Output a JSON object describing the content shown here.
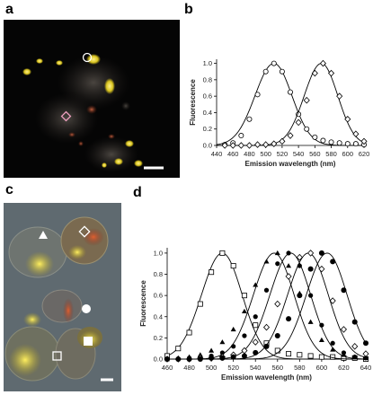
{
  "figure": {
    "panel_labels": {
      "a": "a",
      "b": "b",
      "c": "c",
      "d": "d"
    }
  },
  "chart_data": [
    {
      "panel": "b",
      "type": "line",
      "xlabel": "Emission wavelength (nm)",
      "ylabel": "Fluorescence",
      "xlim": [
        440,
        620
      ],
      "ylim": [
        0,
        1.05
      ],
      "xticks": [
        440,
        460,
        480,
        500,
        520,
        540,
        560,
        580,
        600,
        620
      ],
      "yticks": [
        0,
        0.2,
        0.4,
        0.6,
        0.8,
        1.0
      ],
      "marker": "circle/diamond (open)",
      "series": [
        {
          "peak": 510,
          "width": 22,
          "x": [
            450,
            460,
            470,
            480,
            490,
            500,
            510,
            520,
            530,
            540,
            550,
            560,
            570,
            580,
            590,
            600,
            610,
            620
          ],
          "y": [
            0.01,
            0.03,
            0.12,
            0.32,
            0.62,
            0.9,
            1.0,
            0.9,
            0.65,
            0.38,
            0.2,
            0.1,
            0.06,
            0.04,
            0.03,
            0.02,
            0.02,
            0.01
          ]
        },
        {
          "peak": 568,
          "width": 20,
          "x": [
            450,
            460,
            470,
            480,
            490,
            500,
            510,
            520,
            530,
            540,
            550,
            560,
            570,
            580,
            590,
            600,
            610,
            620
          ],
          "y": [
            0.0,
            0.0,
            0.0,
            0.0,
            0.01,
            0.01,
            0.02,
            0.05,
            0.12,
            0.28,
            0.55,
            0.88,
            1.0,
            0.88,
            0.6,
            0.32,
            0.14,
            0.05
          ]
        }
      ]
    },
    {
      "panel": "d",
      "type": "line",
      "xlabel": "Emission wavelength (nm)",
      "ylabel": "Fluorescence",
      "xlim": [
        460,
        640
      ],
      "ylim": [
        0,
        1.05
      ],
      "xticks": [
        460,
        480,
        500,
        520,
        540,
        560,
        580,
        600,
        620,
        640
      ],
      "yticks": [
        0,
        0.2,
        0.4,
        0.6,
        0.8,
        1.0
      ],
      "series": [
        {
          "marker": "square-open",
          "peak": 510,
          "x": [
            460,
            470,
            480,
            490,
            500,
            510,
            520,
            530,
            540,
            550,
            560,
            570,
            580,
            590,
            600,
            610,
            620,
            630,
            640
          ],
          "y": [
            0.03,
            0.1,
            0.25,
            0.52,
            0.82,
            1.0,
            0.88,
            0.6,
            0.32,
            0.15,
            0.08,
            0.05,
            0.04,
            0.03,
            0.02,
            0.02,
            0.01,
            0.01,
            0.0
          ]
        },
        {
          "marker": "triangle-filled",
          "peak": 557,
          "x": [
            460,
            470,
            480,
            490,
            500,
            510,
            520,
            530,
            540,
            550,
            560,
            570,
            580,
            590,
            600,
            610,
            620,
            630,
            640
          ],
          "y": [
            0.0,
            0.01,
            0.02,
            0.04,
            0.08,
            0.16,
            0.28,
            0.45,
            0.7,
            0.92,
            1.0,
            0.88,
            0.62,
            0.35,
            0.18,
            0.09,
            0.04,
            0.02,
            0.01
          ]
        },
        {
          "marker": "circle-filled",
          "peak": 572,
          "x": [
            460,
            470,
            480,
            490,
            500,
            510,
            520,
            530,
            540,
            550,
            560,
            570,
            580,
            590,
            600,
            610,
            620,
            630,
            640
          ],
          "y": [
            0.0,
            0.0,
            0.01,
            0.02,
            0.03,
            0.06,
            0.12,
            0.22,
            0.4,
            0.65,
            0.9,
            1.0,
            0.88,
            0.6,
            0.32,
            0.15,
            0.06,
            0.02,
            0.01
          ]
        },
        {
          "marker": "diamond-open",
          "peak": 588,
          "x": [
            460,
            470,
            480,
            490,
            500,
            510,
            520,
            530,
            540,
            550,
            560,
            570,
            580,
            590,
            600,
            610,
            620,
            630,
            640
          ],
          "y": [
            0.0,
            0.0,
            0.0,
            0.01,
            0.01,
            0.02,
            0.04,
            0.08,
            0.16,
            0.3,
            0.52,
            0.78,
            0.96,
            1.0,
            0.85,
            0.55,
            0.28,
            0.12,
            0.05
          ]
        },
        {
          "marker": "circle-filled-large",
          "peak": 605,
          "x": [
            460,
            470,
            480,
            490,
            500,
            510,
            520,
            530,
            540,
            550,
            560,
            570,
            580,
            590,
            600,
            610,
            620,
            630,
            640
          ],
          "y": [
            0.0,
            0.0,
            0.0,
            0.0,
            0.01,
            0.01,
            0.02,
            0.03,
            0.06,
            0.12,
            0.22,
            0.38,
            0.6,
            0.85,
            1.0,
            0.92,
            0.65,
            0.35,
            0.15
          ]
        }
      ]
    }
  ]
}
